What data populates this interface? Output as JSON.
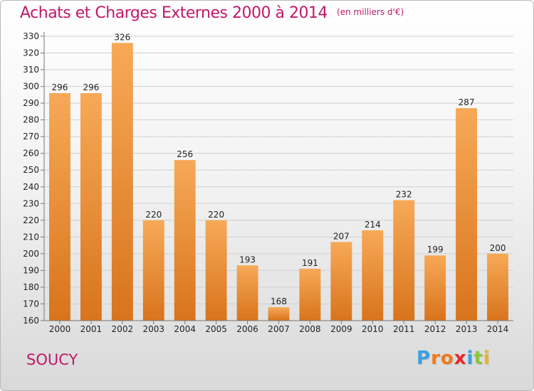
{
  "header": {
    "title": "Achats et Charges Externes 2000 à 2014",
    "unit": "(en milliers d'€)"
  },
  "footer": {
    "commune": "SOUCY",
    "logo": {
      "letters": [
        "P",
        "r",
        "o",
        "x",
        "i",
        "t",
        "i"
      ],
      "colors": [
        "#3aa0e0",
        "#f07a1a",
        "#f07a1a",
        "#e8262e",
        "#3aa0e0",
        "#8cc63f",
        "#f0b21a"
      ]
    }
  },
  "chart_data": {
    "type": "bar",
    "title": "Achats et Charges Externes 2000 à 2014",
    "categories": [
      "2000",
      "2001",
      "2002",
      "2003",
      "2004",
      "2005",
      "2006",
      "2007",
      "2008",
      "2009",
      "2010",
      "2011",
      "2012",
      "2013",
      "2014"
    ],
    "values": [
      296,
      296,
      326,
      220,
      256,
      220,
      193,
      168,
      191,
      207,
      214,
      232,
      199,
      287,
      200
    ],
    "ylim": [
      160,
      330
    ],
    "yticks": [
      160,
      170,
      180,
      190,
      200,
      210,
      220,
      230,
      240,
      250,
      260,
      270,
      280,
      290,
      300,
      310,
      320,
      330
    ],
    "grid": true,
    "bar_color_top": "#f7a957",
    "bar_color_bottom": "#d8741c"
  }
}
